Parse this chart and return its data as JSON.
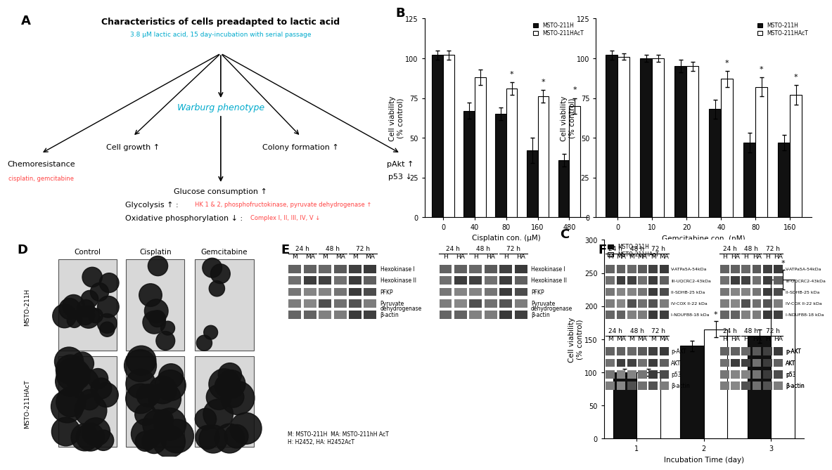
{
  "panel_A": {
    "title": "Characteristics of cells preadapted to lactic acid",
    "subtitle": "3.8 μM lactic acid, 15 day-incubation with serial passage",
    "title_color": "#000000",
    "subtitle_color": "#00AACC",
    "center_node": "Warburg phenotype",
    "center_node_color": "#00AACC",
    "branches": [
      "Chemoresistance",
      "Cell growth ↑",
      "Colony formation ↑",
      "pAkt ↑\np53 ↓"
    ],
    "branch_sub": [
      "cisplatin, gemcitabine",
      "",
      "",
      ""
    ],
    "branch_sub_color": [
      "#FF4444",
      "",
      "",
      ""
    ]
  },
  "panel_B_cisplatin": {
    "categories": [
      "0",
      "40",
      "80",
      "160",
      "480"
    ],
    "msto_211h": [
      102,
      67,
      65,
      42,
      36
    ],
    "msto_211hact": [
      102,
      88,
      81,
      76,
      70
    ],
    "msto_211h_err": [
      3,
      5,
      4,
      8,
      4
    ],
    "msto_211hact_err": [
      3,
      5,
      4,
      4,
      5
    ],
    "xlabel": "Cisplatin con. (μM)",
    "ylabel": "Cell viability\n(% control)",
    "ylim": [
      0,
      125
    ],
    "yticks": [
      0,
      25,
      50,
      75,
      100,
      125
    ],
    "star_msto": [],
    "star_act": [
      2,
      3,
      4
    ],
    "legend": [
      "MSTO-211H",
      "MSTO-211HAcT"
    ]
  },
  "panel_B_gemcitabine": {
    "categories": [
      "0",
      "10",
      "20",
      "40",
      "80",
      "160"
    ],
    "msto_211h": [
      102,
      100,
      95,
      68,
      47,
      47
    ],
    "msto_211hact": [
      101,
      100,
      95,
      87,
      82,
      77
    ],
    "msto_211h_err": [
      3,
      2,
      4,
      6,
      6,
      5
    ],
    "msto_211hact_err": [
      2,
      2,
      3,
      5,
      6,
      6
    ],
    "xlabel": "Gemcitabine con. (nM)",
    "ylabel": "Cell viability\n(% control)",
    "ylim": [
      0,
      125
    ],
    "yticks": [
      0,
      25,
      50,
      75,
      100,
      125
    ],
    "star_msto": [],
    "star_act": [
      3,
      4,
      5
    ],
    "legend": [
      "MSTO-211H",
      "MSTO-211HAcT"
    ]
  },
  "panel_C": {
    "categories": [
      "1",
      "2",
      "3"
    ],
    "msto_211h": [
      100,
      140,
      155
    ],
    "msto_211hact": [
      100,
      165,
      240
    ],
    "msto_211h_err": [
      5,
      8,
      10
    ],
    "msto_211hact_err": [
      5,
      12,
      15
    ],
    "xlabel": "Incubation Time (day)",
    "ylabel": "Cell viability\n(% control)",
    "ylim": [
      0,
      300
    ],
    "yticks": [
      0,
      50,
      100,
      150,
      200,
      250,
      300
    ],
    "star_act": [
      1,
      2
    ],
    "legend": [
      "MSTO-211H",
      "MSTO-211HAcT"
    ]
  },
  "panel_D": {
    "col_labels": [
      "Control",
      "Cisplatin",
      "Gemcitabine"
    ],
    "row_labels": [
      "MSTO-211H",
      "MSTO-211HAcT"
    ]
  },
  "panel_E": {
    "lane_labels_left": [
      "M",
      "MA",
      "M",
      "MA",
      "M",
      "MA"
    ],
    "lane_labels_right": [
      "H",
      "HA",
      "H",
      "HA",
      "H",
      "HA"
    ],
    "time_groups": [
      [
        0,
        2,
        "24 h"
      ],
      [
        2,
        4,
        "48 h"
      ],
      [
        4,
        6,
        "72 h"
      ]
    ],
    "band_labels": [
      "Hexokinase I",
      "Hexokinase II",
      "PFKP",
      "Pyruvate\ndehydrogenase",
      "β-actin"
    ],
    "footnote": "M: MSTO-211H  MA: MSTO-211hH AcT\nH: H2452, HA: H2452AcT"
  },
  "panel_F": {
    "lane_labels_left": [
      "M",
      "MA",
      "M",
      "MA",
      "M",
      "MA"
    ],
    "lane_labels_right": [
      "H",
      "HA",
      "H",
      "HA",
      "H",
      "HA"
    ],
    "time_groups": [
      [
        0,
        2,
        "24 h"
      ],
      [
        2,
        4,
        "48 h"
      ],
      [
        4,
        6,
        "72 h"
      ]
    ],
    "band_labels_top": [
      "",
      "",
      "",
      "",
      ""
    ],
    "band_labels_top_right": [
      "V-ATPa5A-54kDa",
      "III-UQCRC2-43kDa",
      "II-SDHB-25 kDa",
      "IV-COX II-22 kDa",
      "I-NDUFB8-18 kDa"
    ],
    "band_labels_bot": [
      "p-AKT",
      "AKT",
      "p53",
      "β-actin"
    ]
  },
  "background_color": "#ffffff",
  "bar_color_solid": "#111111",
  "bar_color_open": "#ffffff",
  "bar_edge_color": "#000000"
}
